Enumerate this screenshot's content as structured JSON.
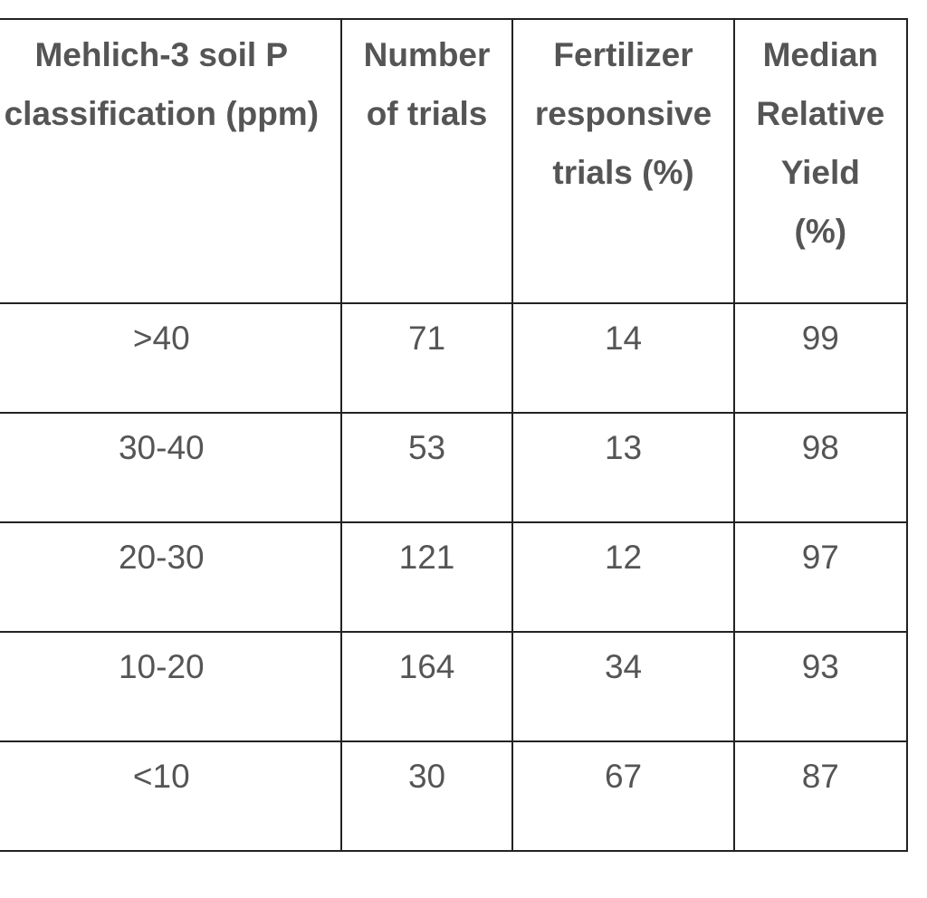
{
  "table": {
    "header": [
      "Mehlich-3 soil P classification (ppm)",
      "Number of trials",
      "Fertilizer responsive trials (%)",
      "Median Relative Yield (%)"
    ],
    "rows": [
      [
        ">40",
        71,
        14,
        99
      ],
      [
        "30-40",
        53,
        13,
        98
      ],
      [
        "20-30",
        121,
        12,
        97
      ],
      [
        "10-20",
        164,
        34,
        93
      ],
      [
        "<10",
        30,
        67,
        87
      ]
    ]
  }
}
